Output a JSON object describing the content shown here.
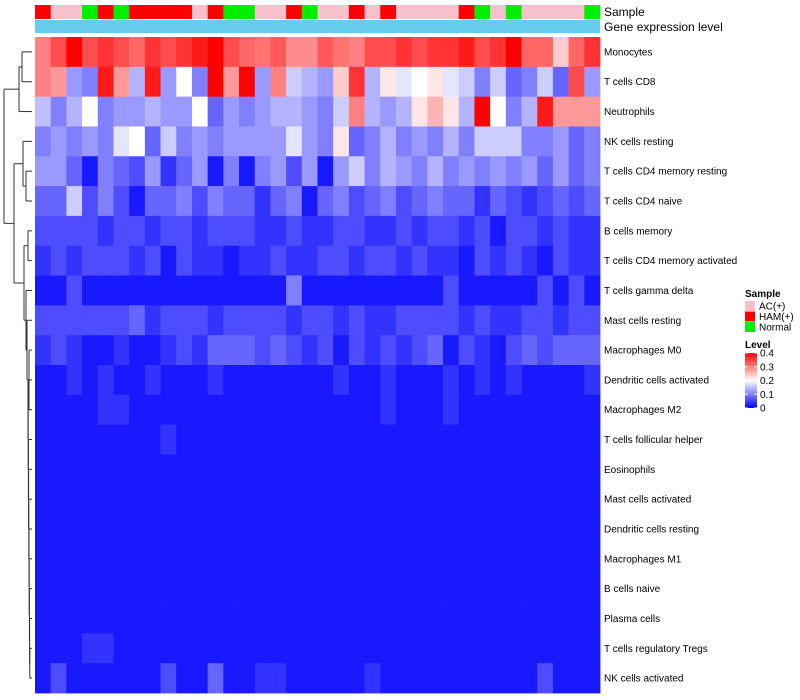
{
  "chart_data": {
    "type": "heatmap",
    "row_labels": [
      "Monocytes",
      "T cells CD8",
      "Neutrophils",
      "NK cells resting",
      "T cells CD4 memory resting",
      "T cells CD4 naive",
      "B cells memory",
      "T cells CD4 memory activated",
      "T cells gamma delta",
      "Mast cells resting",
      "Macrophages M0",
      "Dendritic cells activated",
      "Macrophages M2",
      "T cells follicular helper",
      "Eosinophils",
      "Mast cells activated",
      "Dendritic cells resting",
      "Macrophages M1",
      "B cells naive",
      "Plasma cells",
      "T cells regulatory  Tregs",
      "NK cells activated"
    ],
    "column_groups": [
      "HAM(+)",
      "AC(+)",
      "AC(+)",
      "Normal",
      "HAM(+)",
      "Normal",
      "HAM(+)",
      "HAM(+)",
      "HAM(+)",
      "HAM(+)",
      "AC(+)",
      "HAM(+)",
      "Normal",
      "Normal",
      "AC(+)",
      "AC(+)",
      "HAM(+)",
      "Normal",
      "AC(+)",
      "AC(+)",
      "HAM(+)",
      "AC(+)",
      "HAM(+)",
      "AC(+)",
      "AC(+)",
      "AC(+)",
      "AC(+)",
      "HAM(+)",
      "Normal",
      "AC(+)",
      "Normal",
      "AC(+)",
      "AC(+)",
      "AC(+)",
      "AC(+)",
      "Normal"
    ],
    "values": [
      [
        0.3,
        0.34,
        0.4,
        0.34,
        0.36,
        0.34,
        0.32,
        0.36,
        0.34,
        0.36,
        0.38,
        0.4,
        0.34,
        0.32,
        0.31,
        0.33,
        0.29,
        0.29,
        0.33,
        0.31,
        0.3,
        0.34,
        0.34,
        0.36,
        0.34,
        0.36,
        0.36,
        0.38,
        0.34,
        0.36,
        0.4,
        0.32,
        0.32,
        0.24,
        0.32,
        0.36
      ],
      [
        0.3,
        0.28,
        0.12,
        0.1,
        0.38,
        0.28,
        0.14,
        0.38,
        0.12,
        0.2,
        0.1,
        0.4,
        0.28,
        0.4,
        0.12,
        0.3,
        0.16,
        0.14,
        0.12,
        0.24,
        0.36,
        0.14,
        0.22,
        0.18,
        0.2,
        0.22,
        0.18,
        0.16,
        0.1,
        0.16,
        0.08,
        0.1,
        0.16,
        0.08,
        0.34,
        0.12
      ],
      [
        0.15,
        0.1,
        0.14,
        0.2,
        0.1,
        0.12,
        0.12,
        0.14,
        0.12,
        0.12,
        0.2,
        0.08,
        0.12,
        0.1,
        0.12,
        0.14,
        0.14,
        0.12,
        0.1,
        0.16,
        0.3,
        0.14,
        0.12,
        0.14,
        0.22,
        0.26,
        0.22,
        0.14,
        0.4,
        0.2,
        0.1,
        0.14,
        0.38,
        0.28,
        0.28,
        0.28
      ],
      [
        0.1,
        0.12,
        0.1,
        0.12,
        0.1,
        0.18,
        0.2,
        0.08,
        0.16,
        0.1,
        0.12,
        0.1,
        0.12,
        0.12,
        0.12,
        0.12,
        0.18,
        0.12,
        0.1,
        0.22,
        0.08,
        0.1,
        0.14,
        0.1,
        0.12,
        0.1,
        0.14,
        0.1,
        0.16,
        0.16,
        0.16,
        0.1,
        0.1,
        0.12,
        0.08,
        0.1
      ],
      [
        0.12,
        0.12,
        0.08,
        0.02,
        0.1,
        0.08,
        0.06,
        0.12,
        0.04,
        0.08,
        0.12,
        0.02,
        0.1,
        0.02,
        0.1,
        0.12,
        0.06,
        0.12,
        0.02,
        0.12,
        0.16,
        0.1,
        0.14,
        0.12,
        0.1,
        0.14,
        0.1,
        0.12,
        0.1,
        0.12,
        0.1,
        0.12,
        0.08,
        0.12,
        0.08,
        0.1
      ],
      [
        0.08,
        0.08,
        0.16,
        0.06,
        0.1,
        0.06,
        0.02,
        0.08,
        0.08,
        0.1,
        0.06,
        0.1,
        0.08,
        0.08,
        0.04,
        0.08,
        0.1,
        0.02,
        0.08,
        0.1,
        0.06,
        0.08,
        0.1,
        0.06,
        0.08,
        0.1,
        0.08,
        0.08,
        0.04,
        0.08,
        0.06,
        0.04,
        0.06,
        0.08,
        0.06,
        0.08
      ],
      [
        0.06,
        0.06,
        0.06,
        0.06,
        0.04,
        0.06,
        0.06,
        0.04,
        0.06,
        0.06,
        0.04,
        0.06,
        0.06,
        0.06,
        0.04,
        0.04,
        0.06,
        0.04,
        0.04,
        0.06,
        0.06,
        0.04,
        0.04,
        0.06,
        0.04,
        0.06,
        0.06,
        0.04,
        0.06,
        0.02,
        0.06,
        0.06,
        0.04,
        0.06,
        0.04,
        0.04
      ],
      [
        0.04,
        0.06,
        0.04,
        0.06,
        0.06,
        0.06,
        0.04,
        0.06,
        0.02,
        0.06,
        0.04,
        0.04,
        0.02,
        0.04,
        0.04,
        0.06,
        0.04,
        0.04,
        0.06,
        0.06,
        0.04,
        0.06,
        0.06,
        0.04,
        0.06,
        0.04,
        0.04,
        0.02,
        0.06,
        0.04,
        0.06,
        0.04,
        0.02,
        0.06,
        0.04,
        0.04
      ],
      [
        0.02,
        0.02,
        0.06,
        0.02,
        0.02,
        0.02,
        0.02,
        0.02,
        0.02,
        0.02,
        0.02,
        0.02,
        0.02,
        0.02,
        0.02,
        0.02,
        0.1,
        0.02,
        0.02,
        0.02,
        0.02,
        0.02,
        0.02,
        0.02,
        0.02,
        0.02,
        0.06,
        0.02,
        0.02,
        0.02,
        0.02,
        0.02,
        0.06,
        0.02,
        0.06,
        0.02
      ],
      [
        0.06,
        0.06,
        0.06,
        0.06,
        0.06,
        0.06,
        0.08,
        0.04,
        0.06,
        0.06,
        0.06,
        0.04,
        0.06,
        0.06,
        0.06,
        0.06,
        0.04,
        0.06,
        0.06,
        0.04,
        0.06,
        0.04,
        0.04,
        0.06,
        0.06,
        0.06,
        0.06,
        0.04,
        0.06,
        0.04,
        0.04,
        0.06,
        0.06,
        0.04,
        0.06,
        0.06
      ],
      [
        0.04,
        0.06,
        0.04,
        0.02,
        0.02,
        0.04,
        0.02,
        0.02,
        0.04,
        0.06,
        0.04,
        0.08,
        0.08,
        0.08,
        0.06,
        0.08,
        0.06,
        0.04,
        0.06,
        0.02,
        0.06,
        0.04,
        0.06,
        0.04,
        0.06,
        0.08,
        0.02,
        0.06,
        0.04,
        0.02,
        0.06,
        0.08,
        0.06,
        0.08,
        0.08,
        0.08
      ],
      [
        0.02,
        0.02,
        0.04,
        0.02,
        0.04,
        0.02,
        0.02,
        0.04,
        0.02,
        0.02,
        0.02,
        0.04,
        0.02,
        0.02,
        0.02,
        0.02,
        0.02,
        0.02,
        0.02,
        0.04,
        0.02,
        0.02,
        0.04,
        0.02,
        0.02,
        0.02,
        0.04,
        0.02,
        0.04,
        0.02,
        0.04,
        0.02,
        0.02,
        0.02,
        0.02,
        0.04
      ],
      [
        0.02,
        0.02,
        0.02,
        0.02,
        0.04,
        0.04,
        0.02,
        0.02,
        0.02,
        0.02,
        0.02,
        0.02,
        0.02,
        0.02,
        0.02,
        0.02,
        0.02,
        0.02,
        0.02,
        0.02,
        0.02,
        0.02,
        0.04,
        0.02,
        0.02,
        0.02,
        0.04,
        0.02,
        0.02,
        0.02,
        0.02,
        0.02,
        0.02,
        0.02,
        0.02,
        0.02
      ],
      [
        0.02,
        0.02,
        0.02,
        0.02,
        0.02,
        0.02,
        0.02,
        0.02,
        0.04,
        0.02,
        0.02,
        0.02,
        0.02,
        0.02,
        0.02,
        0.02,
        0.02,
        0.02,
        0.02,
        0.02,
        0.02,
        0.02,
        0.02,
        0.02,
        0.02,
        0.02,
        0.02,
        0.02,
        0.02,
        0.02,
        0.02,
        0.02,
        0.02,
        0.02,
        0.02,
        0.02
      ],
      [
        0.02,
        0.02,
        0.02,
        0.02,
        0.02,
        0.02,
        0.02,
        0.02,
        0.02,
        0.02,
        0.02,
        0.02,
        0.02,
        0.02,
        0.02,
        0.02,
        0.02,
        0.02,
        0.02,
        0.02,
        0.02,
        0.02,
        0.02,
        0.02,
        0.02,
        0.02,
        0.02,
        0.02,
        0.02,
        0.02,
        0.02,
        0.02,
        0.02,
        0.02,
        0.02,
        0.02
      ],
      [
        0.02,
        0.02,
        0.02,
        0.02,
        0.02,
        0.02,
        0.02,
        0.02,
        0.02,
        0.02,
        0.02,
        0.02,
        0.02,
        0.02,
        0.02,
        0.02,
        0.02,
        0.02,
        0.02,
        0.02,
        0.02,
        0.02,
        0.02,
        0.02,
        0.02,
        0.02,
        0.02,
        0.02,
        0.02,
        0.02,
        0.02,
        0.02,
        0.02,
        0.02,
        0.02,
        0.02
      ],
      [
        0.02,
        0.02,
        0.02,
        0.02,
        0.02,
        0.02,
        0.02,
        0.02,
        0.02,
        0.02,
        0.02,
        0.02,
        0.02,
        0.02,
        0.02,
        0.02,
        0.02,
        0.02,
        0.02,
        0.02,
        0.02,
        0.02,
        0.02,
        0.02,
        0.02,
        0.02,
        0.02,
        0.02,
        0.02,
        0.02,
        0.02,
        0.02,
        0.02,
        0.02,
        0.02,
        0.02
      ],
      [
        0.02,
        0.02,
        0.02,
        0.02,
        0.02,
        0.02,
        0.02,
        0.02,
        0.02,
        0.02,
        0.02,
        0.02,
        0.02,
        0.02,
        0.02,
        0.02,
        0.02,
        0.02,
        0.02,
        0.02,
        0.02,
        0.02,
        0.02,
        0.02,
        0.02,
        0.02,
        0.02,
        0.02,
        0.02,
        0.02,
        0.02,
        0.02,
        0.02,
        0.02,
        0.02,
        0.02
      ],
      [
        0.02,
        0.02,
        0.02,
        0.02,
        0.02,
        0.02,
        0.02,
        0.02,
        0.02,
        0.02,
        0.02,
        0.02,
        0.02,
        0.02,
        0.02,
        0.02,
        0.02,
        0.02,
        0.02,
        0.02,
        0.02,
        0.02,
        0.02,
        0.02,
        0.02,
        0.02,
        0.02,
        0.02,
        0.02,
        0.02,
        0.02,
        0.02,
        0.02,
        0.02,
        0.02,
        0.02
      ],
      [
        0.02,
        0.02,
        0.02,
        0.02,
        0.02,
        0.02,
        0.02,
        0.02,
        0.02,
        0.02,
        0.02,
        0.02,
        0.02,
        0.02,
        0.02,
        0.02,
        0.02,
        0.02,
        0.02,
        0.02,
        0.02,
        0.02,
        0.02,
        0.02,
        0.02,
        0.02,
        0.02,
        0.02,
        0.02,
        0.02,
        0.02,
        0.02,
        0.02,
        0.02,
        0.02,
        0.02
      ],
      [
        0.02,
        0.02,
        0.02,
        0.04,
        0.04,
        0.02,
        0.02,
        0.02,
        0.02,
        0.02,
        0.02,
        0.02,
        0.02,
        0.02,
        0.02,
        0.02,
        0.02,
        0.02,
        0.02,
        0.02,
        0.02,
        0.02,
        0.02,
        0.02,
        0.02,
        0.02,
        0.02,
        0.02,
        0.02,
        0.02,
        0.02,
        0.02,
        0.02,
        0.02,
        0.02,
        0.02
      ],
      [
        0.02,
        0.06,
        0.02,
        0.02,
        0.02,
        0.02,
        0.02,
        0.02,
        0.06,
        0.02,
        0.02,
        0.08,
        0.02,
        0.02,
        0.04,
        0.04,
        0.02,
        0.02,
        0.02,
        0.02,
        0.02,
        0.04,
        0.02,
        0.02,
        0.02,
        0.02,
        0.02,
        0.02,
        0.02,
        0.02,
        0.02,
        0.02,
        0.06,
        0.02,
        0.02,
        0.02
      ]
    ],
    "annotation_labels": [
      "Sample",
      "Gene expression level"
    ],
    "legend": {
      "sample_title": "Sample",
      "sample_entries": [
        {
          "label": "AC(+)",
          "color": "#f6c0cc"
        },
        {
          "label": "HAM(+)",
          "color": "#ff0000"
        },
        {
          "label": "Normal",
          "color": "#00ee00"
        }
      ],
      "level_title": "Level",
      "level_ticks": [
        "0.4",
        "0.3",
        "0.2",
        "0.1",
        "0"
      ],
      "range": [
        0,
        0.4
      ]
    },
    "colors": {
      "low": "#0000ff",
      "mid": "#ffffff",
      "high": "#ff0000",
      "gene_expression_bar": "#66ccee"
    }
  }
}
